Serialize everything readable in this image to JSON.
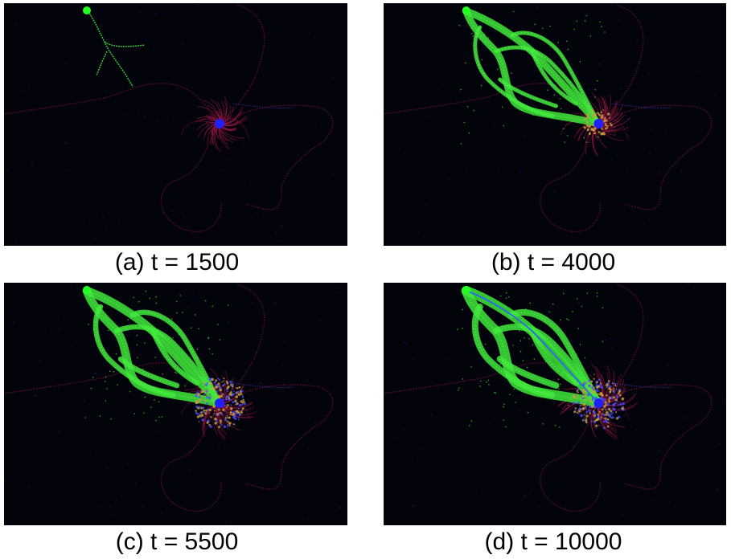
{
  "panels": [
    {
      "caption": "(a) t = 1500",
      "stage": 0
    },
    {
      "caption": "(b) t = 4000",
      "stage": 1
    },
    {
      "caption": "(c) t = 5500",
      "stage": 2
    },
    {
      "caption": "(d) t = 10000",
      "stage": 3
    }
  ],
  "colors": {
    "background": "#03030c",
    "network": "#3ee83a",
    "outer_trails": "#6a1030",
    "mixed_cloud": "#c8a040",
    "food_source": "#2020ff",
    "seed": "#22ff22"
  }
}
